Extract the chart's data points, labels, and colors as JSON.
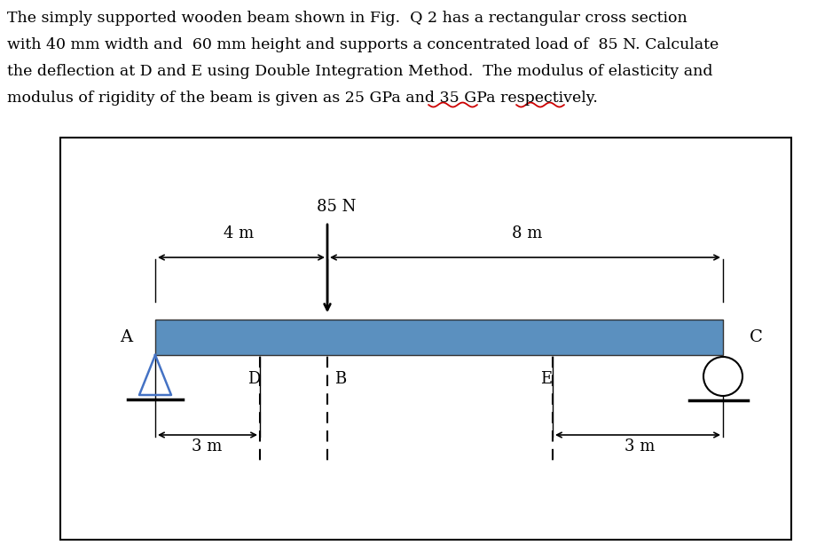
{
  "bg_color": "#ffffff",
  "text_color": "#000000",
  "beam_color": "#5b90bf",
  "para_lines": [
    "The simply supported wooden beam shown in Fig.  Q 2 has a rectangular cross section",
    "with 40 mm width and  60 mm height and supports a concentrated load of  85 N. Calculate",
    "the deflection at D and E using Double Integration Method.  The modulus of elasticity and",
    "modulus of rigidity of the beam is given as 25 GPa and 35 GPa respectively."
  ],
  "label_A": "A",
  "label_B": "B",
  "label_C": "C",
  "label_D": "D",
  "label_E": "E",
  "load_label": "85 N",
  "dim_4m": "4 m",
  "dim_8m": "8 m",
  "dim_3m_left": "3 m",
  "dim_3m_right": "3 m",
  "text_fontsize": 12.5,
  "diagram_fontsize": 12,
  "wavy_color": "#cc0000",
  "support_A_color": "#4472c4",
  "support_C_color": "#000000"
}
